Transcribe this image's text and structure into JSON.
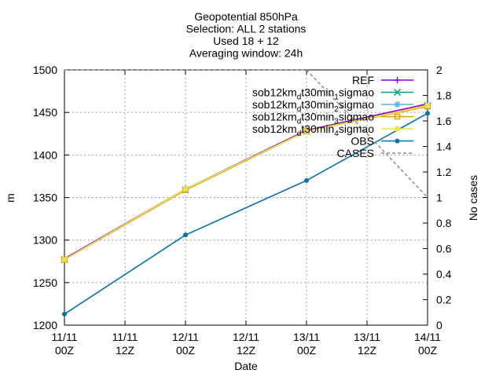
{
  "chart_data": {
    "type": "line",
    "title_lines": [
      "Geopotential 850hPa",
      "Selection: ALL       2 stations",
      "Used 18 + 12",
      "Averaging window: 24h"
    ],
    "xlabel": "Date",
    "ylabel": "m",
    "y2label": "No cases",
    "x": [
      0,
      12,
      24,
      36,
      48,
      60,
      72
    ],
    "xlim": [
      0,
      72
    ],
    "x_tick_labels": [
      [
        "11/11",
        "00Z"
      ],
      [
        "11/11",
        "12Z"
      ],
      [
        "12/11",
        "00Z"
      ],
      [
        "12/11",
        "12Z"
      ],
      [
        "13/11",
        "00Z"
      ],
      [
        "13/11",
        "12Z"
      ],
      [
        "14/11",
        "00Z"
      ]
    ],
    "ylim": [
      1200,
      1500
    ],
    "y_ticks": [
      1200,
      1250,
      1300,
      1350,
      1400,
      1450,
      1500
    ],
    "y2lim": [
      0,
      2
    ],
    "y2_ticks": [
      "0",
      "0.2",
      "0.4",
      "0.6",
      "0.8",
      "1",
      "1.2",
      "1.4",
      "1.6",
      "1.8",
      "2"
    ],
    "grid": true,
    "legend_position": "top-right",
    "series": [
      {
        "name": "REF",
        "label_main": "REF",
        "label_sub": "",
        "label_tail": "",
        "color": "#9400d3",
        "marker": "plus",
        "dash": false,
        "axis": "y1",
        "x": [
          0,
          24,
          48,
          72
        ],
        "values": [
          1278,
          1360,
          1429,
          1460
        ]
      },
      {
        "name": "sob12km_dt30min_1sigmao",
        "label_main": "sob12km",
        "label_sub": "d",
        "label_tail": "t30min",
        "label_sub2": "1",
        "label_end": "sigmao",
        "color": "#009e73",
        "marker": "cross",
        "dash": false,
        "axis": "y1",
        "x": [
          0,
          24,
          48,
          72
        ],
        "values": [
          1277,
          1359,
          1428,
          1458
        ]
      },
      {
        "name": "sob12km_dt30min_2sigmao",
        "label_main": "sob12km",
        "label_sub": "d",
        "label_tail": "t30min",
        "label_sub2": "2",
        "label_end": "sigmao",
        "color": "#56b4e9",
        "marker": "star",
        "dash": false,
        "axis": "y1",
        "x": [
          0,
          24,
          48,
          72
        ],
        "values": [
          1277,
          1359,
          1428,
          1458
        ]
      },
      {
        "name": "sob12km_dt30min_3sigmao",
        "label_main": "sob12km",
        "label_sub": "d",
        "label_tail": "t30min",
        "label_sub2": "3",
        "label_end": "sigmao",
        "color": "#e69f00",
        "marker": "square",
        "dash": false,
        "axis": "y1",
        "x": [
          0,
          24,
          48,
          72
        ],
        "values": [
          1277,
          1359,
          1428,
          1457
        ]
      },
      {
        "name": "sob12km_dt30min_4sigmao",
        "label_main": "sob12km",
        "label_sub": "d",
        "label_tail": "t30min",
        "label_sub2": "4",
        "label_end": "sigmao",
        "color": "#f0e442",
        "marker": "filled-square",
        "dash": false,
        "axis": "y1",
        "x": [
          0,
          24,
          48,
          72
        ],
        "values": [
          1277,
          1360,
          1428,
          1458
        ]
      },
      {
        "name": "OBS",
        "label_main": "OBS",
        "label_sub": "",
        "label_tail": "",
        "color": "#0072b2",
        "marker": "circle",
        "dash": false,
        "axis": "y1",
        "x": [
          0,
          24,
          48,
          72
        ],
        "values": [
          1213,
          1306,
          1370,
          1449
        ]
      },
      {
        "name": "CASES",
        "label_main": "CASES",
        "label_sub": "",
        "label_tail": "",
        "color": "#8c8c8c",
        "marker": "none",
        "dash": true,
        "axis": "y2",
        "x": [
          0,
          48,
          72
        ],
        "values": [
          2,
          2,
          1
        ]
      }
    ]
  }
}
